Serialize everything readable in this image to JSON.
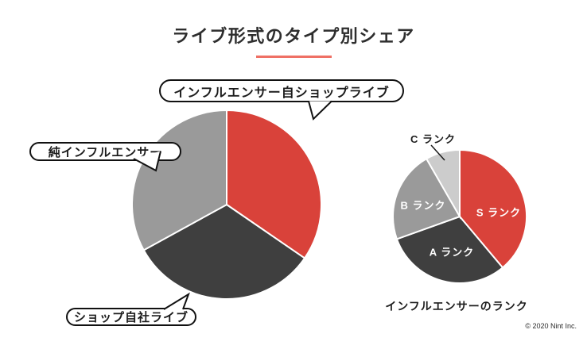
{
  "title": {
    "text": "ライブ形式のタイプ別シェア"
  },
  "colors": {
    "title_underline": "#ef7065",
    "red": "#d9423a",
    "dark": "#3f3f3f",
    "gray": "#9a9a9a",
    "light_gray": "#cccccc",
    "bubble_border": "#111111",
    "background": "#ffffff"
  },
  "chart_data": [
    {
      "type": "pie",
      "name": "live-format-share",
      "title": "ライブ形式のタイプ別シェア",
      "labels": [
        "インフルエンサー自ショップライブ",
        "ショップ自社ライブ",
        "純インフルエンサー"
      ],
      "values": [
        34.6,
        32.4,
        33.0
      ],
      "colors": [
        "#d9423a",
        "#3f3f3f",
        "#9a9a9a"
      ],
      "start_angle_deg": 0,
      "direction": "clockwise",
      "values_note": "percent estimated from slice angles; no numeric labels shown",
      "label_style": "outlined speech-bubble callouts"
    },
    {
      "type": "pie",
      "name": "influencer-rank",
      "title": "インフルエンサーのランク",
      "labels": [
        "S ランク",
        "A ランク",
        "B ランク",
        "C ランク"
      ],
      "values": [
        38.9,
        30.6,
        22.2,
        8.3
      ],
      "colors": [
        "#d9423a",
        "#3f3f3f",
        "#9a9a9a",
        "#cccccc"
      ],
      "start_angle_deg": 0,
      "direction": "clockwise",
      "values_note": "percent estimated from slice angles; no numeric labels shown",
      "label_style": "inside labels; C rank labeled outside with leader line"
    }
  ],
  "footer": {
    "copyright": "© 2020 Nint Inc."
  }
}
